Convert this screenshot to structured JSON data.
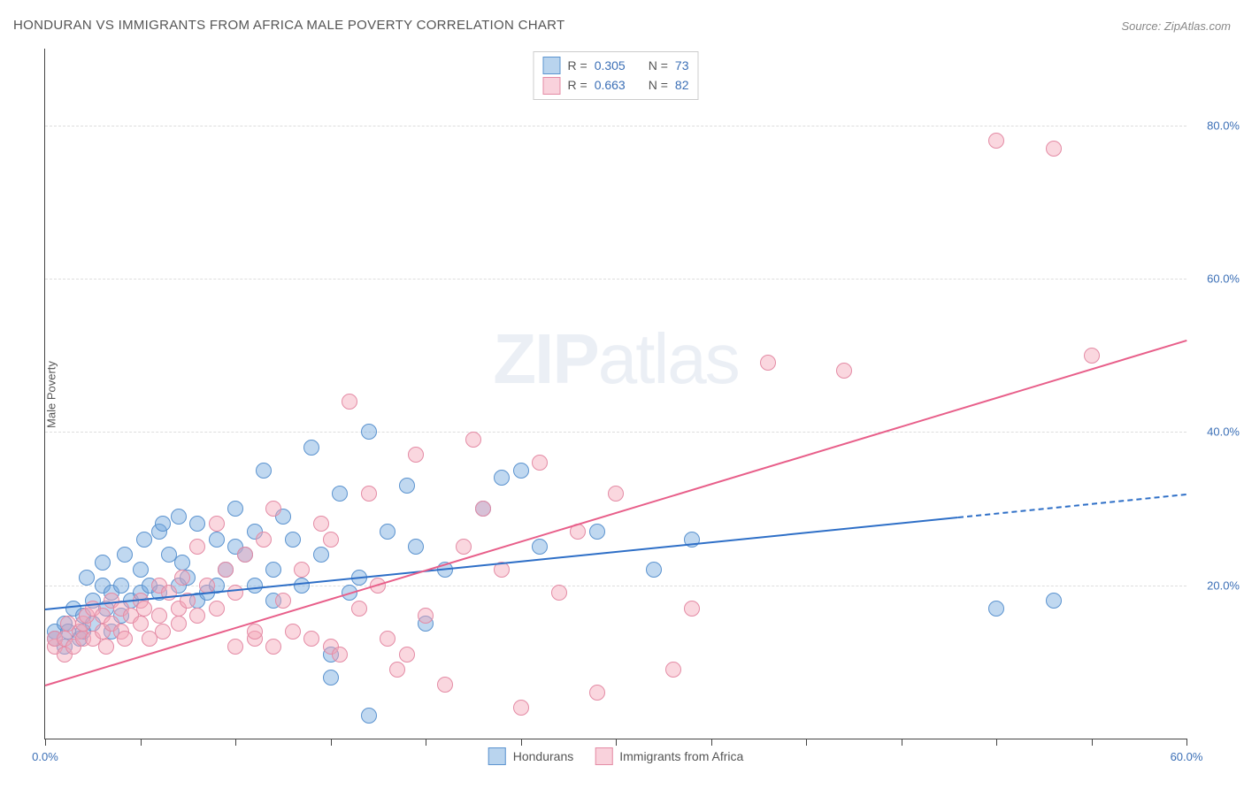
{
  "title": "HONDURAN VS IMMIGRANTS FROM AFRICA MALE POVERTY CORRELATION CHART",
  "source": "Source: ZipAtlas.com",
  "ylabel": "Male Poverty",
  "watermark_bold": "ZIP",
  "watermark_light": "atlas",
  "chart": {
    "type": "scatter",
    "xlim": [
      0,
      60
    ],
    "ylim": [
      0,
      90
    ],
    "xtick_positions": [
      0,
      5,
      10,
      15,
      20,
      25,
      30,
      35,
      40,
      45,
      50,
      55,
      60
    ],
    "xtick_labels": {
      "0": "0.0%",
      "60": "60.0%"
    },
    "ytick_positions": [
      20,
      40,
      60,
      80
    ],
    "ytick_labels": {
      "20": "20.0%",
      "40": "40.0%",
      "60": "60.0%",
      "80": "80.0%"
    },
    "grid_color": "#dddddd",
    "axis_color": "#444444",
    "background_color": "#ffffff",
    "tick_label_color": "#3b6fb6",
    "point_radius": 8,
    "series": [
      {
        "name": "Hondurans",
        "color_fill": "rgba(116,169,222,0.45)",
        "color_stroke": "#5b93cf",
        "trend_color": "#2e6fc7",
        "R": "0.305",
        "N": "73",
        "trend": {
          "x1": 0,
          "y1": 17,
          "x2": 48,
          "y2": 29,
          "dash_x1": 48,
          "dash_x2": 60,
          "dash_y2": 32
        },
        "points": [
          [
            0.5,
            14
          ],
          [
            0.5,
            13
          ],
          [
            1,
            12
          ],
          [
            1,
            15
          ],
          [
            1.2,
            14
          ],
          [
            1.5,
            17
          ],
          [
            1.8,
            13
          ],
          [
            2,
            16
          ],
          [
            2,
            14
          ],
          [
            2.2,
            21
          ],
          [
            2.5,
            15
          ],
          [
            2.5,
            18
          ],
          [
            3,
            20
          ],
          [
            3,
            23
          ],
          [
            3.2,
            17
          ],
          [
            3.5,
            14
          ],
          [
            3.5,
            19
          ],
          [
            4,
            20
          ],
          [
            4,
            16
          ],
          [
            4.2,
            24
          ],
          [
            4.5,
            18
          ],
          [
            5,
            19
          ],
          [
            5,
            22
          ],
          [
            5.2,
            26
          ],
          [
            5.5,
            20
          ],
          [
            6,
            27
          ],
          [
            6,
            19
          ],
          [
            6.2,
            28
          ],
          [
            6.5,
            24
          ],
          [
            7,
            20
          ],
          [
            7,
            29
          ],
          [
            7.2,
            23
          ],
          [
            7.5,
            21
          ],
          [
            8,
            28
          ],
          [
            8,
            18
          ],
          [
            8.5,
            19
          ],
          [
            9,
            26
          ],
          [
            9,
            20
          ],
          [
            9.5,
            22
          ],
          [
            10,
            30
          ],
          [
            10,
            25
          ],
          [
            10.5,
            24
          ],
          [
            11,
            20
          ],
          [
            11,
            27
          ],
          [
            11.5,
            35
          ],
          [
            12,
            22
          ],
          [
            12,
            18
          ],
          [
            12.5,
            29
          ],
          [
            13,
            26
          ],
          [
            13.5,
            20
          ],
          [
            14,
            38
          ],
          [
            14.5,
            24
          ],
          [
            15,
            11
          ],
          [
            15,
            8
          ],
          [
            15.5,
            32
          ],
          [
            16,
            19
          ],
          [
            16.5,
            21
          ],
          [
            17,
            3
          ],
          [
            17,
            40
          ],
          [
            18,
            27
          ],
          [
            19,
            33
          ],
          [
            19.5,
            25
          ],
          [
            20,
            15
          ],
          [
            21,
            22
          ],
          [
            23,
            30
          ],
          [
            24,
            34
          ],
          [
            25,
            35
          ],
          [
            26,
            25
          ],
          [
            29,
            27
          ],
          [
            32,
            22
          ],
          [
            34,
            26
          ],
          [
            50,
            17
          ],
          [
            53,
            18
          ]
        ]
      },
      {
        "name": "Immigrants from Africa",
        "color_fill": "rgba(244,166,185,0.45)",
        "color_stroke": "#e48ba5",
        "trend_color": "#e85f8a",
        "R": "0.663",
        "N": "82",
        "trend": {
          "x1": 0,
          "y1": 7,
          "x2": 60,
          "y2": 52
        },
        "points": [
          [
            0.5,
            12
          ],
          [
            0.5,
            13
          ],
          [
            1,
            11
          ],
          [
            1,
            13
          ],
          [
            1.2,
            15
          ],
          [
            1.5,
            12
          ],
          [
            1.8,
            14
          ],
          [
            2,
            13
          ],
          [
            2,
            15
          ],
          [
            2.2,
            16
          ],
          [
            2.5,
            13
          ],
          [
            2.5,
            17
          ],
          [
            3,
            14
          ],
          [
            3,
            16
          ],
          [
            3.2,
            12
          ],
          [
            3.5,
            15
          ],
          [
            3.5,
            18
          ],
          [
            4,
            14
          ],
          [
            4,
            17
          ],
          [
            4.2,
            13
          ],
          [
            4.5,
            16
          ],
          [
            5,
            15
          ],
          [
            5,
            18
          ],
          [
            5.2,
            17
          ],
          [
            5.5,
            13
          ],
          [
            6,
            16
          ],
          [
            6,
            20
          ],
          [
            6.2,
            14
          ],
          [
            6.5,
            19
          ],
          [
            7,
            17
          ],
          [
            7,
            15
          ],
          [
            7.2,
            21
          ],
          [
            7.5,
            18
          ],
          [
            8,
            16
          ],
          [
            8,
            25
          ],
          [
            8.5,
            20
          ],
          [
            9,
            17
          ],
          [
            9,
            28
          ],
          [
            9.5,
            22
          ],
          [
            10,
            12
          ],
          [
            10,
            19
          ],
          [
            10.5,
            24
          ],
          [
            11,
            13
          ],
          [
            11,
            14
          ],
          [
            11.5,
            26
          ],
          [
            12,
            12
          ],
          [
            12,
            30
          ],
          [
            12.5,
            18
          ],
          [
            13,
            14
          ],
          [
            13.5,
            22
          ],
          [
            14,
            13
          ],
          [
            14.5,
            28
          ],
          [
            15,
            12
          ],
          [
            15,
            26
          ],
          [
            15.5,
            11
          ],
          [
            16,
            44
          ],
          [
            16.5,
            17
          ],
          [
            17,
            32
          ],
          [
            17.5,
            20
          ],
          [
            18,
            13
          ],
          [
            18.5,
            9
          ],
          [
            19,
            11
          ],
          [
            19.5,
            37
          ],
          [
            20,
            16
          ],
          [
            21,
            7
          ],
          [
            22,
            25
          ],
          [
            22.5,
            39
          ],
          [
            23,
            30
          ],
          [
            24,
            22
          ],
          [
            25,
            4
          ],
          [
            26,
            36
          ],
          [
            27,
            19
          ],
          [
            28,
            27
          ],
          [
            29,
            6
          ],
          [
            30,
            32
          ],
          [
            33,
            9
          ],
          [
            34,
            17
          ],
          [
            38,
            49
          ],
          [
            42,
            48
          ],
          [
            50,
            78
          ],
          [
            53,
            77
          ],
          [
            55,
            50
          ]
        ]
      }
    ]
  },
  "legend_top": [
    {
      "swatch": "blue",
      "R_label": "R =",
      "R": "0.305",
      "N_label": "N =",
      "N": "73"
    },
    {
      "swatch": "pink",
      "R_label": "R =",
      "R": "0.663",
      "N_label": "N =",
      "N": "82"
    }
  ],
  "legend_bottom": [
    {
      "swatch": "blue",
      "label": "Hondurans"
    },
    {
      "swatch": "pink",
      "label": "Immigrants from Africa"
    }
  ]
}
